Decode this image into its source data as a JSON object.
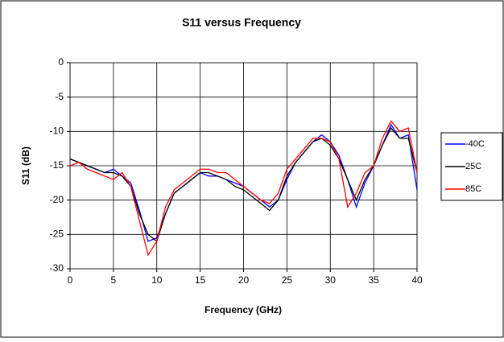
{
  "chart_data": {
    "type": "line",
    "title": "S11 versus Frequency",
    "x_label": "Frequency (GHz)",
    "y_label": "S11 (dB)",
    "x": [
      0,
      1,
      2,
      3,
      4,
      5,
      6,
      7,
      8,
      9,
      10,
      11,
      12,
      13,
      14,
      15,
      16,
      17,
      18,
      19,
      20,
      21,
      22,
      23,
      24,
      25,
      26,
      27,
      28,
      29,
      30,
      31,
      32,
      33,
      34,
      35,
      36,
      37,
      38,
      39,
      40
    ],
    "series": [
      {
        "name": "-40C",
        "color": "#0000ff",
        "values": [
          -14,
          -14.5,
          -15,
          -15.5,
          -16,
          -15.5,
          -16.5,
          -17.5,
          -21.5,
          -26,
          -25.5,
          -22,
          -19,
          -18,
          -17,
          -16,
          -16.5,
          -16.5,
          -17,
          -17.5,
          -18,
          -19,
          -20,
          -21,
          -20,
          -17,
          -14.5,
          -13,
          -11.5,
          -10.5,
          -11.5,
          -13.5,
          -17,
          -21,
          -17.5,
          -15,
          -12,
          -9,
          -11,
          -10.5,
          -18.5
        ]
      },
      {
        "name": "25C",
        "color": "#000000",
        "values": [
          -14,
          -14.5,
          -15,
          -15.5,
          -16,
          -16,
          -16.5,
          -18,
          -22,
          -25,
          -26,
          -22,
          -19,
          -18,
          -17,
          -16,
          -16,
          -16.5,
          -17,
          -18,
          -18.5,
          -19.5,
          -20.5,
          -21.5,
          -20,
          -16.5,
          -14.5,
          -13,
          -11.5,
          -11,
          -12,
          -14,
          -17,
          -20,
          -17,
          -15,
          -12,
          -9.5,
          -11,
          -11,
          -16
        ]
      },
      {
        "name": "85C",
        "color": "#ff0000",
        "values": [
          -15,
          -14.5,
          -15.5,
          -16,
          -16.5,
          -17,
          -16,
          -18,
          -23,
          -28,
          -26,
          -21,
          -18.5,
          -17.5,
          -16.5,
          -15.5,
          -15.5,
          -16,
          -16,
          -17,
          -18,
          -19,
          -20,
          -20.5,
          -19,
          -15.5,
          -14,
          -12.5,
          -11,
          -11,
          -11.5,
          -14,
          -21,
          -19,
          -16,
          -15,
          -11,
          -8.5,
          -10,
          -9.5,
          -16
        ]
      }
    ],
    "xlim": [
      0,
      40
    ],
    "xticks": [
      0,
      5,
      10,
      15,
      20,
      25,
      30,
      35,
      40
    ],
    "ylim": [
      -30,
      0
    ],
    "yticks": [
      0,
      -5,
      -10,
      -15,
      -20,
      -25,
      -30
    ],
    "grid": true,
    "legend": "right"
  }
}
